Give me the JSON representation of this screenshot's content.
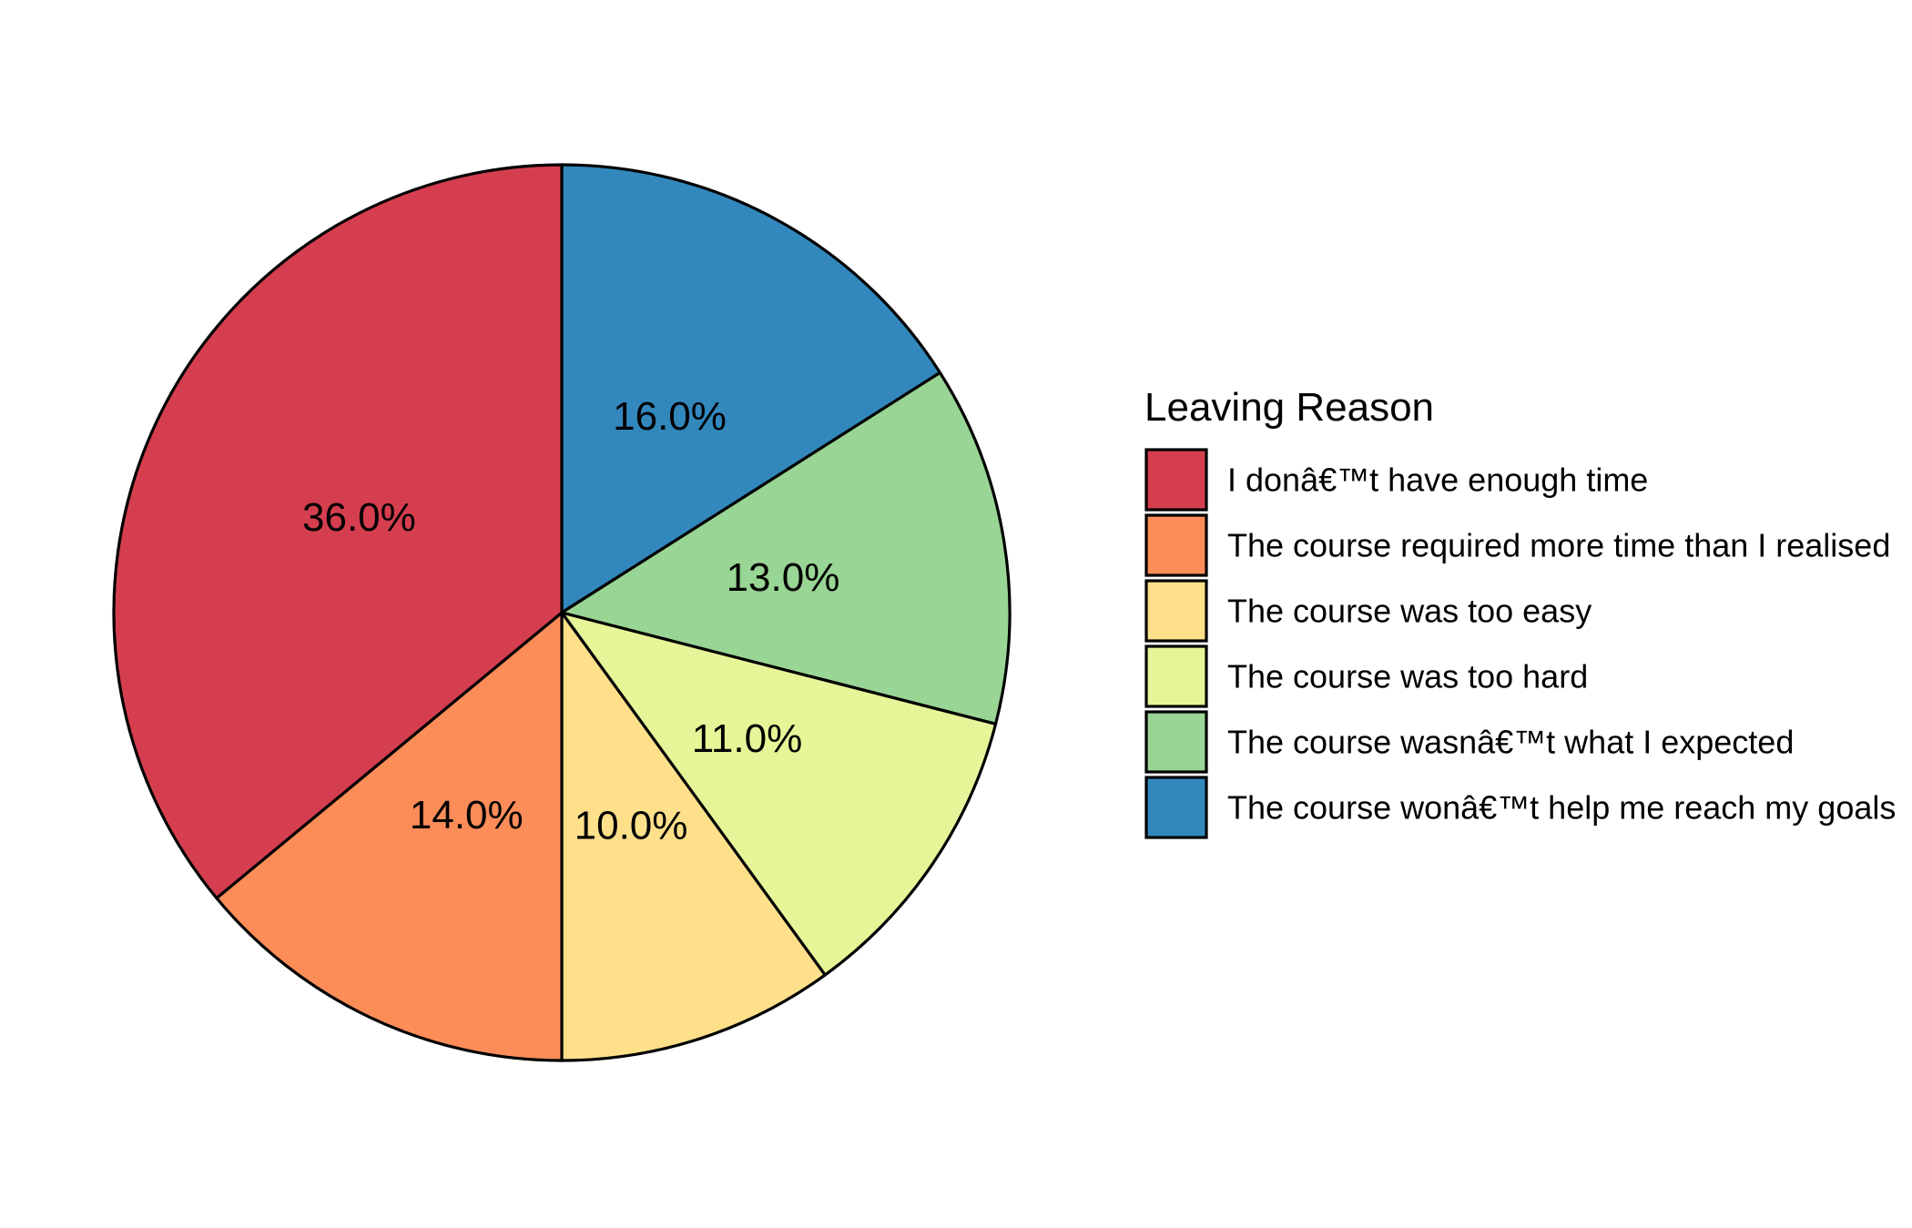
{
  "chart_data": {
    "type": "pie",
    "title": "",
    "legend": {
      "title": "Leaving Reason",
      "position": "right"
    },
    "start_angle": "12 o'clock",
    "direction": "clockwise",
    "slices": [
      {
        "label": "The course wonâ€™t help me reach my goals",
        "value": 16.0,
        "value_label": "16.0%",
        "color": "#3288BD"
      },
      {
        "label": "The course wasnâ€™t what I expected",
        "value": 13.0,
        "value_label": "13.0%",
        "color": "#99D594"
      },
      {
        "label": "The course was too hard",
        "value": 11.0,
        "value_label": "11.0%",
        "color": "#E6F598"
      },
      {
        "label": "The course was too easy",
        "value": 10.0,
        "value_label": "10.0%",
        "color": "#FEE08B"
      },
      {
        "label": "The course required more time than I realised",
        "value": 14.0,
        "value_label": "14.0%",
        "color": "#FC8D59"
      },
      {
        "label": "I donâ€™t have enough time",
        "value": 36.0,
        "value_label": "36.0%",
        "color": "#D53E4F"
      }
    ],
    "legend_order": [
      "I donâ€™t have enough time",
      "The course required more time than I realised",
      "The course was too easy",
      "The course was too hard",
      "The course wasnâ€™t what I expected",
      "The course wonâ€™t help me reach my goals"
    ]
  }
}
